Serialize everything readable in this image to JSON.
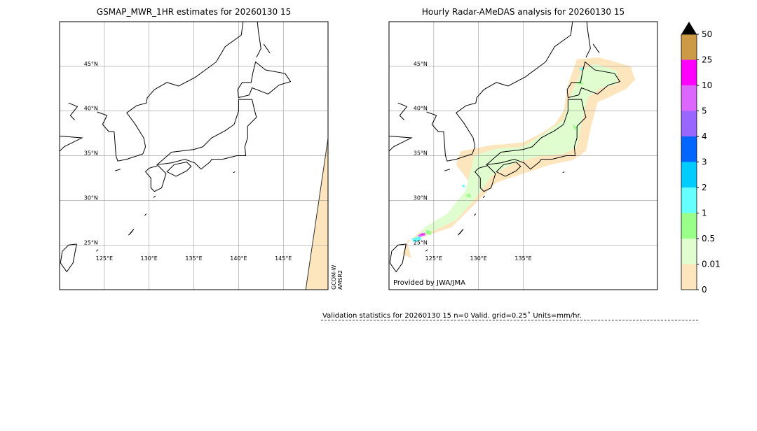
{
  "maps": [
    {
      "title": "GSMAP_MWR_1HR estimates for 20260130 15",
      "lon_ticks": [
        {
          "value": 125,
          "label": "125°E"
        },
        {
          "value": 130,
          "label": "130°E"
        },
        {
          "value": 135,
          "label": "135°E"
        },
        {
          "value": 140,
          "label": "140°E"
        },
        {
          "value": 145,
          "label": "145°E"
        }
      ],
      "lat_ticks": [
        {
          "value": 25,
          "label": "25°N"
        },
        {
          "value": 30,
          "label": "30°N"
        },
        {
          "value": 35,
          "label": "35°N"
        },
        {
          "value": 40,
          "label": "40°N"
        },
        {
          "value": 45,
          "label": "45°N"
        }
      ],
      "satellite": [
        "GCOM-W",
        "AMSR2"
      ]
    },
    {
      "title": "Hourly Radar-AMeDAS analysis for 20260130 15",
      "lon_ticks": [
        {
          "value": 125,
          "label": "125°E"
        },
        {
          "value": 130,
          "label": "130°E"
        },
        {
          "value": 135,
          "label": "135°E"
        }
      ],
      "lat_ticks": [
        {
          "value": 25,
          "label": "25°N"
        },
        {
          "value": 30,
          "label": "30°N"
        },
        {
          "value": 35,
          "label": "35°N"
        },
        {
          "value": 40,
          "label": "40°N"
        },
        {
          "value": 45,
          "label": "45°N"
        }
      ],
      "credit": "Provided by JWA/JMA"
    }
  ],
  "colorbar": {
    "levels": [
      0,
      0.01,
      0.5,
      1,
      2,
      3,
      4,
      5,
      10,
      25,
      50
    ],
    "colors": [
      "#fde6be",
      "#e0fdd0",
      "#99ff88",
      "#66ffff",
      "#00ccff",
      "#0066ff",
      "#9966ff",
      "#dd66ff",
      "#ff00ff",
      "#cc9944"
    ],
    "extend_color": "#000000"
  },
  "validation": "Validation statistics for 20260130 15  n=0 Valid. grid=0.25˚ Units=mm/hr."
}
